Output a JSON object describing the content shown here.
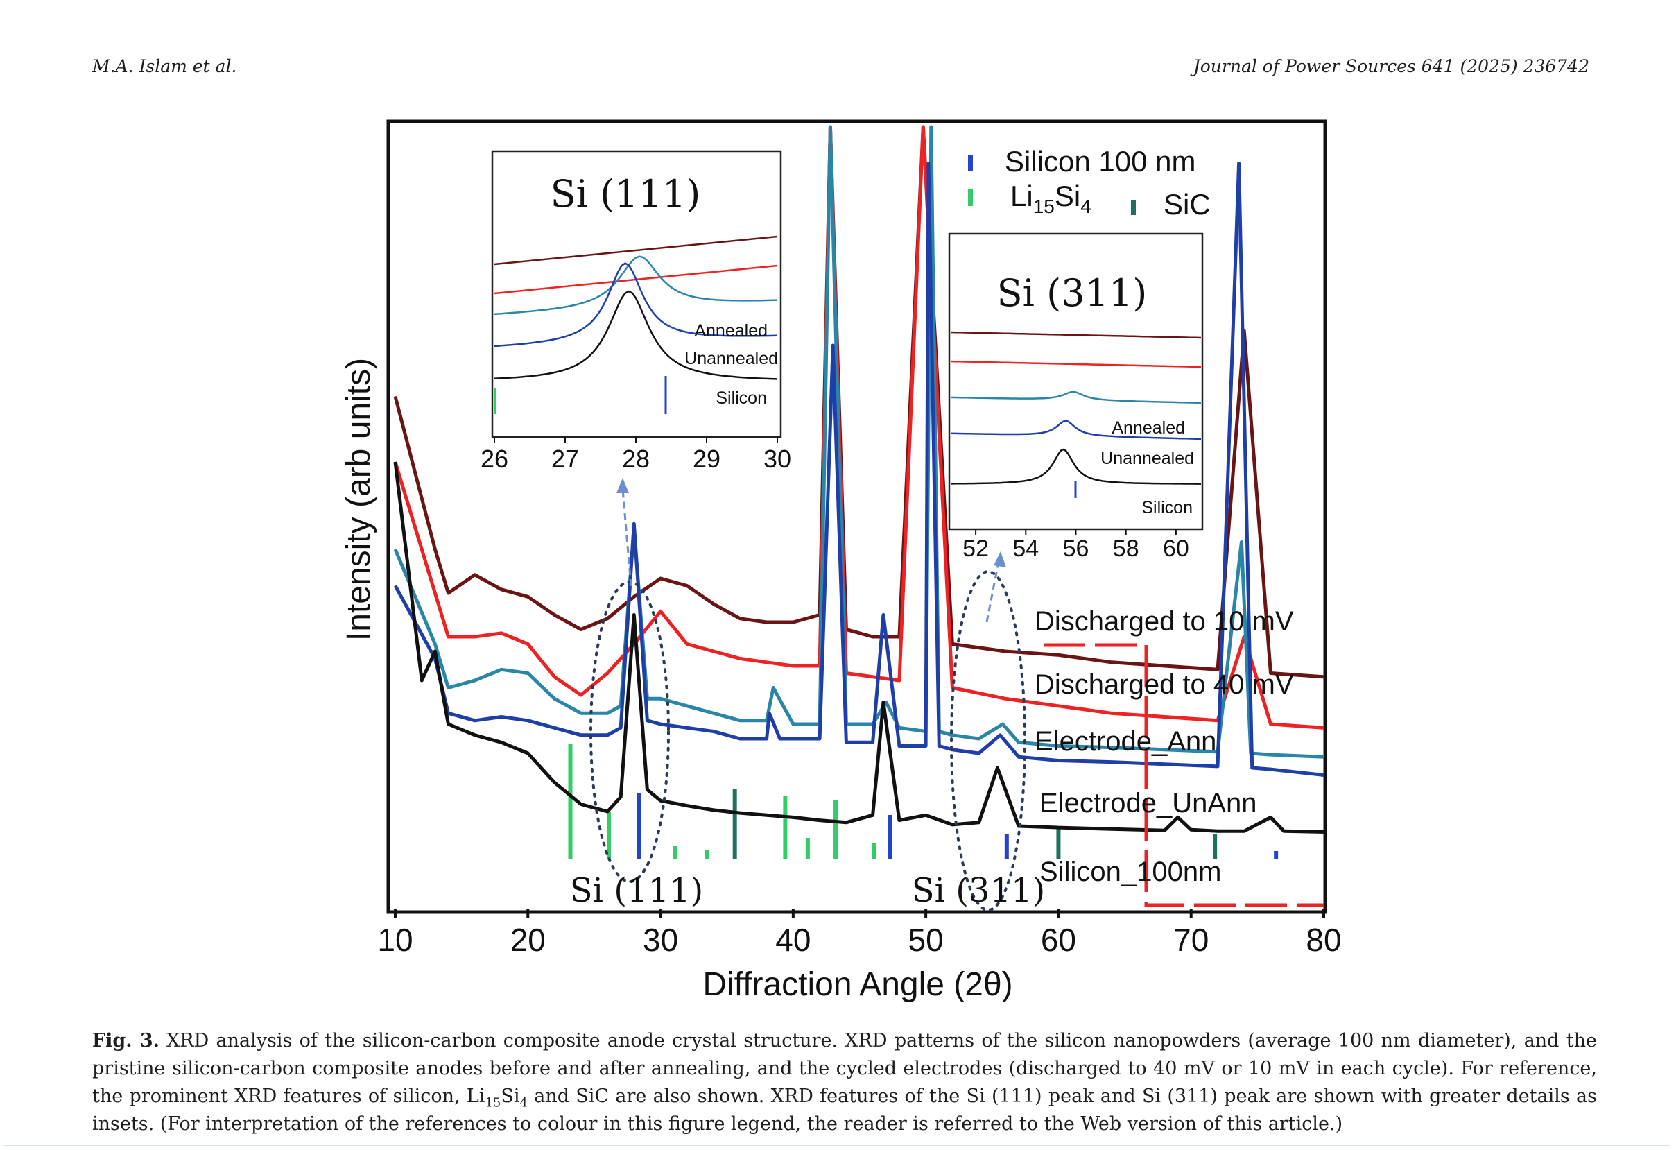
{
  "header": {
    "authors": "M.A. Islam et al.",
    "journal": "Journal of Power Sources 641 (2025) 236742"
  },
  "chart_data": [
    {
      "type": "line",
      "xlabel": "Diffraction Angle (2θ)",
      "ylabel": "Intensity (arb units)",
      "xlim": [
        10,
        80
      ],
      "x_ticks": [
        "10",
        "20",
        "30",
        "40",
        "50",
        "60",
        "70",
        "80"
      ],
      "series": [
        {
          "name": "Discharged to 10 mV",
          "color": "#6b1414",
          "x": [
            10,
            13,
            14,
            16,
            18,
            20,
            22,
            24,
            26,
            28,
            30,
            32,
            34,
            36,
            38,
            40,
            42,
            42.8,
            44,
            46,
            48,
            49.8,
            52,
            56,
            60,
            64,
            68,
            72,
            74,
            76,
            80
          ],
          "values": [
            630,
            420,
            360,
            385,
            365,
            355,
            330,
            310,
            325,
            355,
            380,
            370,
            345,
            325,
            320,
            320,
            330,
            1000,
            310,
            300,
            300,
            1000,
            290,
            280,
            275,
            265,
            260,
            255,
            720,
            250,
            245
          ]
        },
        {
          "name": "Discharged to 40 mV",
          "color": "#ee2222",
          "x": [
            10,
            13,
            14,
            16,
            18,
            20,
            22,
            24,
            26,
            28,
            30,
            32,
            34,
            36,
            38,
            40,
            42,
            42.8,
            44,
            46,
            48,
            49.8,
            52,
            56,
            60,
            64,
            68,
            72,
            74,
            76,
            80
          ],
          "values": [
            540,
            360,
            300,
            300,
            305,
            290,
            245,
            220,
            250,
            290,
            335,
            290,
            280,
            270,
            265,
            260,
            260,
            1000,
            250,
            245,
            240,
            1000,
            230,
            215,
            205,
            195,
            190,
            185,
            300,
            180,
            175
          ]
        },
        {
          "name": "Electrode_Ann",
          "color": "#2a86a8",
          "x": [
            10,
            13,
            14,
            16,
            18,
            20,
            22,
            24,
            26,
            27,
            28,
            29,
            30,
            32,
            34,
            36,
            38,
            38.5,
            40,
            42,
            42.8,
            44,
            46,
            47,
            48,
            50,
            50.4,
            51,
            52,
            54,
            55.8,
            57,
            60,
            64,
            68,
            72,
            73.8,
            74.5,
            76,
            80
          ],
          "values": [
            420,
            290,
            230,
            240,
            255,
            250,
            215,
            195,
            195,
            205,
            450,
            215,
            215,
            205,
            195,
            185,
            185,
            230,
            180,
            180,
            1000,
            180,
            180,
            210,
            175,
            170,
            1000,
            170,
            165,
            160,
            180,
            155,
            150,
            148,
            145,
            142,
            430,
            140,
            138,
            135
          ]
        },
        {
          "name": "Electrode_UnAnn",
          "color": "#1f3fa8",
          "x": [
            10,
            13,
            14,
            16,
            18,
            20,
            22,
            24,
            26,
            27,
            28,
            29,
            30,
            32,
            34,
            36,
            38,
            38.2,
            39,
            40,
            42,
            43,
            44,
            46,
            46.8,
            48,
            50,
            50.2,
            51,
            52,
            54,
            55.6,
            57,
            60,
            64,
            68,
            72,
            73.6,
            74.6,
            76,
            80
          ],
          "values": [
            370,
            270,
            195,
            185,
            190,
            185,
            175,
            165,
            165,
            175,
            455,
            185,
            180,
            175,
            170,
            160,
            160,
            195,
            160,
            160,
            160,
            700,
            155,
            155,
            330,
            150,
            150,
            950,
            150,
            145,
            140,
            165,
            135,
            130,
            128,
            125,
            122,
            950,
            120,
            118,
            110
          ]
        },
        {
          "name": "Silicon_100nm",
          "color": "#111111",
          "x": [
            10,
            12,
            13,
            14,
            16,
            18,
            20,
            22,
            24,
            26,
            27,
            28,
            29,
            30,
            32,
            34,
            36,
            38,
            40,
            42,
            44,
            46,
            46.8,
            48,
            50,
            52,
            54,
            55.4,
            57,
            60,
            64,
            68,
            69,
            70,
            72,
            74,
            76,
            77,
            80
          ],
          "values": [
            540,
            240,
            280,
            180,
            165,
            155,
            140,
            100,
            70,
            60,
            80,
            330,
            90,
            75,
            68,
            62,
            58,
            55,
            52,
            48,
            45,
            55,
            210,
            48,
            55,
            42,
            45,
            120,
            40,
            38,
            36,
            34,
            52,
            35,
            33,
            33,
            52,
            33,
            32
          ]
        }
      ],
      "reference_lines": [
        {
          "name": "Silicon 100 nm",
          "color": "#2244c8",
          "x": [
            28.4,
            47.3,
            56.1,
            76.4
          ]
        },
        {
          "name": "Li15Si4",
          "color": "#33cc66",
          "x": [
            23.2,
            26.1,
            31.1,
            33.5,
            39.4,
            41.1,
            43.2,
            46.1
          ]
        },
        {
          "name": "SiC",
          "color": "#1e7060",
          "x": [
            35.6,
            60.0,
            71.8
          ]
        }
      ],
      "legend": [
        {
          "label": "Silicon 100 nm",
          "color": "#2244c8"
        },
        {
          "label": "Li15Si4",
          "color": "#33cc66"
        },
        {
          "label": "SiC",
          "color": "#1e7060"
        }
      ],
      "series_labels": [
        "Discharged to 10 mV",
        "Discharged to 40 mV",
        "Electrode_Ann",
        "Electrode_UnAnn",
        "Silicon_100nm"
      ],
      "annotations": [
        "Si (111)",
        "Si (311)"
      ]
    },
    {
      "type": "line",
      "title": "Si (111)",
      "xlim": [
        26,
        30
      ],
      "x_ticks": [
        "26",
        "27",
        "28",
        "29",
        "30"
      ],
      "curve_labels": [
        "Annealed",
        "Unannealed",
        "Silicon"
      ]
    },
    {
      "type": "line",
      "title": "Si (311)",
      "xlim": [
        51,
        61
      ],
      "x_ticks": [
        "52",
        "54",
        "56",
        "58",
        "60"
      ],
      "curve_labels": [
        "Annealed",
        "Unannealed",
        "Silicon"
      ]
    }
  ],
  "caption": {
    "label": "Fig. 3.",
    "text_1": "XRD analysis of the silicon-carbon composite anode crystal structure. XRD patterns of the silicon nanopowders (average 100 nm diameter), and the pristine silicon-carbon composite anodes before and after annealing, and the cycled electrodes (discharged to 40 mV or 10 mV in each cycle). For reference, the prominent XRD features of silicon, Li",
    "sub_1": "15",
    "text_2": "Si",
    "sub_2": "4",
    "text_3": " and SiC are also shown. XRD features of the Si (111) peak and Si (311) peak are shown with greater details as insets. (For interpretation of the references to colour in this figure legend, the reader is referred to the Web version of this article.)"
  }
}
